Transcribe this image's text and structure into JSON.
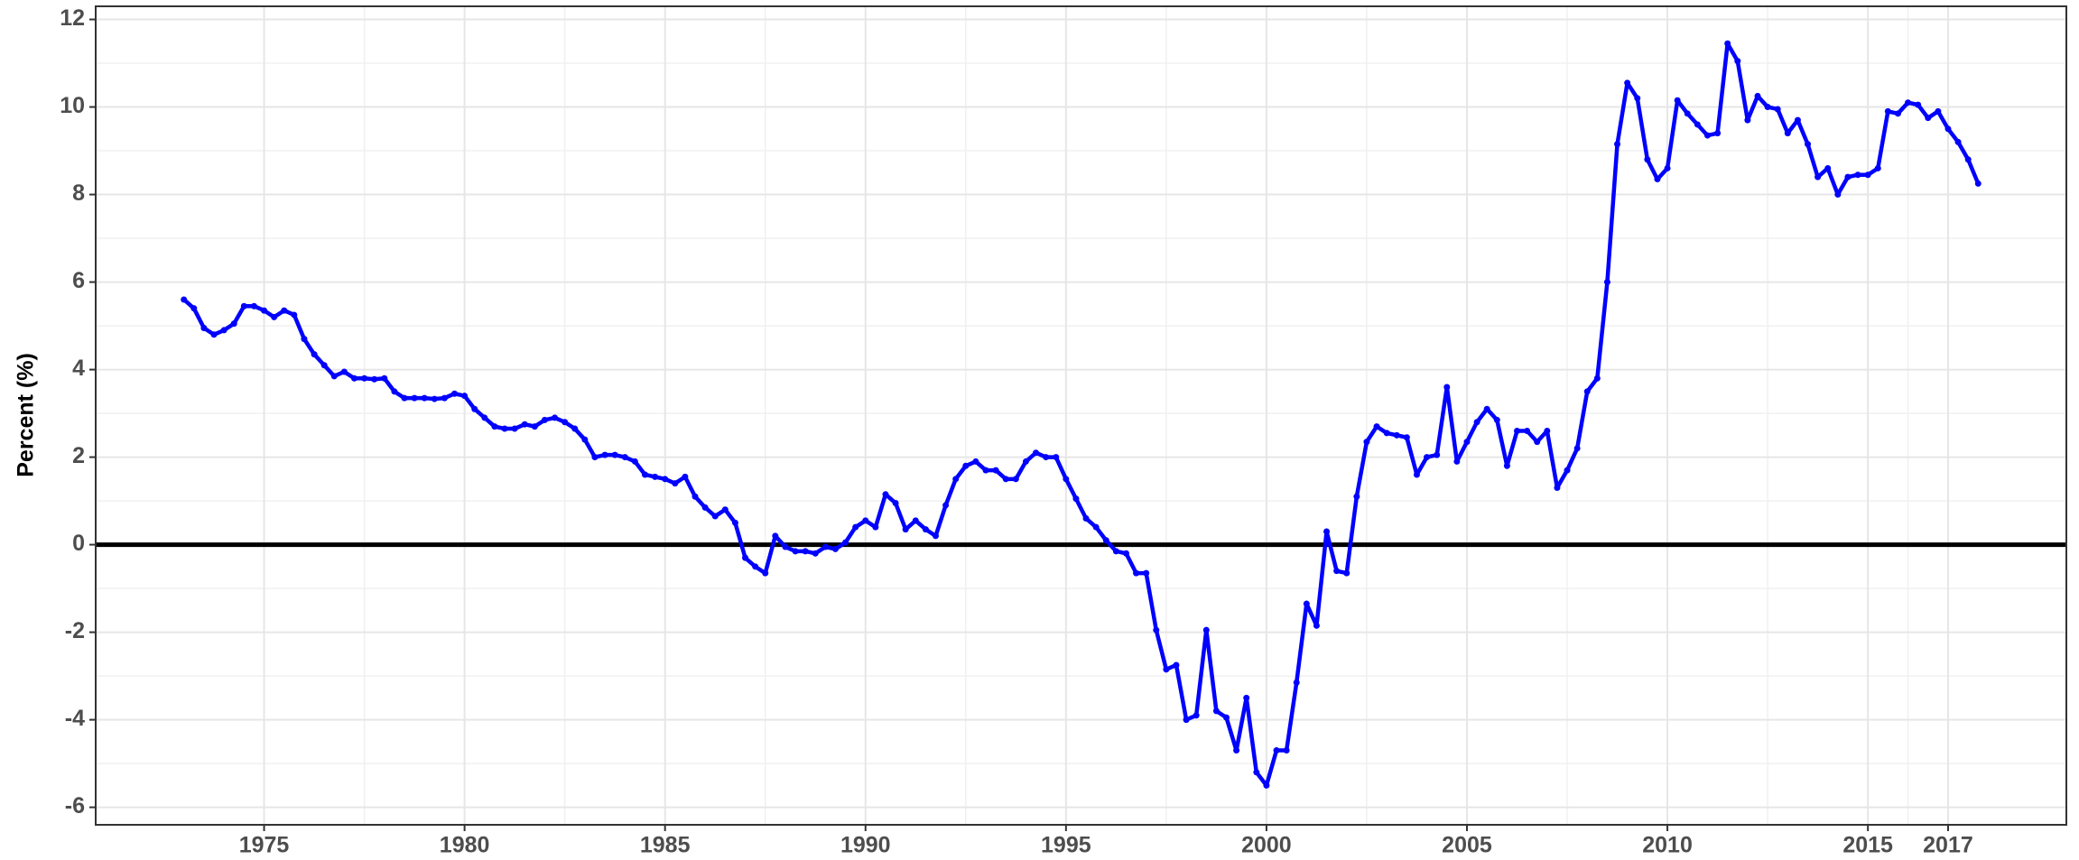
{
  "chart_data": {
    "type": "line",
    "y_label": "Percent (%)",
    "x": [
      1973,
      1973.25,
      1973.5,
      1973.75,
      1974,
      1974.25,
      1974.5,
      1974.75,
      1975,
      1975.25,
      1975.5,
      1975.75,
      1976,
      1976.25,
      1976.5,
      1976.75,
      1977,
      1977.25,
      1977.5,
      1977.75,
      1978,
      1978.25,
      1978.5,
      1978.75,
      1979,
      1979.25,
      1979.5,
      1979.75,
      1980,
      1980.25,
      1980.5,
      1980.75,
      1981,
      1981.25,
      1981.5,
      1981.75,
      1982,
      1982.25,
      1982.5,
      1982.75,
      1983,
      1983.25,
      1983.5,
      1983.75,
      1984,
      1984.25,
      1984.5,
      1984.75,
      1985,
      1985.25,
      1985.5,
      1985.75,
      1986,
      1986.25,
      1986.5,
      1986.75,
      1987,
      1987.25,
      1987.5,
      1987.75,
      1988,
      1988.25,
      1988.5,
      1988.75,
      1989,
      1989.25,
      1989.5,
      1989.75,
      1990,
      1990.25,
      1990.5,
      1990.75,
      1991,
      1991.25,
      1991.5,
      1991.75,
      1992,
      1992.25,
      1992.5,
      1992.75,
      1993,
      1993.25,
      1993.5,
      1993.75,
      1994,
      1994.25,
      1994.5,
      1994.75,
      1995,
      1995.25,
      1995.5,
      1995.75,
      1996,
      1996.25,
      1996.5,
      1996.75,
      1997,
      1997.25,
      1997.5,
      1997.75,
      1998,
      1998.25,
      1998.5,
      1998.75,
      1999,
      1999.25,
      1999.5,
      1999.75,
      2000,
      2000.25,
      2000.5,
      2000.75,
      2001,
      2001.25,
      2001.5,
      2001.75,
      2002,
      2002.25,
      2002.5,
      2002.75,
      2003,
      2003.25,
      2003.5,
      2003.75,
      2004,
      2004.25,
      2004.5,
      2004.75,
      2005,
      2005.25,
      2005.5,
      2005.75,
      2006,
      2006.25,
      2006.5,
      2006.75,
      2007,
      2007.25,
      2007.5,
      2007.75,
      2008,
      2008.25,
      2008.5,
      2008.75,
      2009,
      2009.25,
      2009.5,
      2009.75,
      2010,
      2010.25,
      2010.5,
      2010.75,
      2011,
      2011.25,
      2011.5,
      2011.75,
      2012,
      2012.25,
      2012.5,
      2012.75,
      2013,
      2013.25,
      2013.5,
      2013.75,
      2014,
      2014.25,
      2014.5,
      2014.75,
      2015,
      2015.25,
      2015.5,
      2015.75,
      2016,
      2016.25,
      2016.5,
      2016.75,
      2017,
      2017.25,
      2017.5,
      2017.75
    ],
    "series": [
      {
        "color": "#0000ff",
        "values": [
          5.6,
          5.4,
          4.95,
          4.8,
          4.9,
          5.05,
          5.45,
          5.45,
          5.35,
          5.2,
          5.35,
          5.25,
          4.7,
          4.35,
          4.1,
          3.85,
          3.95,
          3.8,
          3.8,
          3.78,
          3.8,
          3.5,
          3.35,
          3.35,
          3.35,
          3.33,
          3.35,
          3.45,
          3.4,
          3.1,
          2.9,
          2.7,
          2.65,
          2.65,
          2.75,
          2.7,
          2.85,
          2.9,
          2.8,
          2.65,
          2.4,
          2.0,
          2.05,
          2.05,
          2.0,
          1.9,
          1.6,
          1.55,
          1.5,
          1.4,
          1.55,
          1.1,
          0.85,
          0.65,
          0.8,
          0.5,
          -0.3,
          -0.5,
          -0.65,
          0.2,
          -0.05,
          -0.15,
          -0.15,
          -0.2,
          -0.05,
          -0.1,
          0.05,
          0.4,
          0.55,
          0.4,
          1.15,
          0.95,
          0.35,
          0.55,
          0.35,
          0.2,
          0.9,
          1.5,
          1.8,
          1.9,
          1.7,
          1.7,
          1.5,
          1.5,
          1.9,
          2.1,
          2.0,
          2.0,
          1.5,
          1.05,
          0.6,
          0.4,
          0.1,
          -0.15,
          -0.2,
          -0.65,
          -0.65,
          -1.95,
          -2.85,
          -2.75,
          -4.0,
          -3.9,
          -1.95,
          -3.8,
          -3.95,
          -4.7,
          -3.5,
          -5.2,
          -5.5,
          -4.7,
          -4.7,
          -3.15,
          -1.35,
          -1.85,
          0.3,
          -0.6,
          -0.65,
          1.1,
          2.35,
          2.7,
          2.55,
          2.5,
          2.45,
          1.6,
          2.0,
          2.05,
          3.6,
          1.9,
          2.35,
          2.8,
          3.1,
          2.85,
          1.8,
          2.6,
          2.6,
          2.35,
          2.6,
          1.3,
          1.7,
          2.2,
          3.5,
          3.8,
          6.0,
          9.15,
          10.55,
          10.2,
          8.8,
          8.35,
          8.6,
          10.15,
          9.85,
          9.6,
          9.35,
          9.4,
          11.45,
          11.05,
          9.7,
          10.25,
          10.0,
          9.95,
          9.4,
          9.7,
          9.15,
          8.4,
          8.6,
          8.0,
          8.4,
          8.45,
          8.45,
          8.6,
          9.9,
          9.85,
          10.1,
          10.05,
          9.75,
          9.9,
          9.5,
          9.2,
          8.8,
          8.25
        ]
      }
    ],
    "xlim": [
      1970.8,
      2019.95
    ],
    "xticks": [
      1975,
      1980,
      1985,
      1990,
      1995,
      2000,
      2005,
      2010,
      2015,
      2017
    ],
    "ylim": [
      -6.4,
      12.3
    ],
    "yticks": [
      -6,
      -4,
      -2,
      0,
      2,
      4,
      6,
      8,
      10,
      12
    ],
    "hline": 0,
    "grid": true
  }
}
